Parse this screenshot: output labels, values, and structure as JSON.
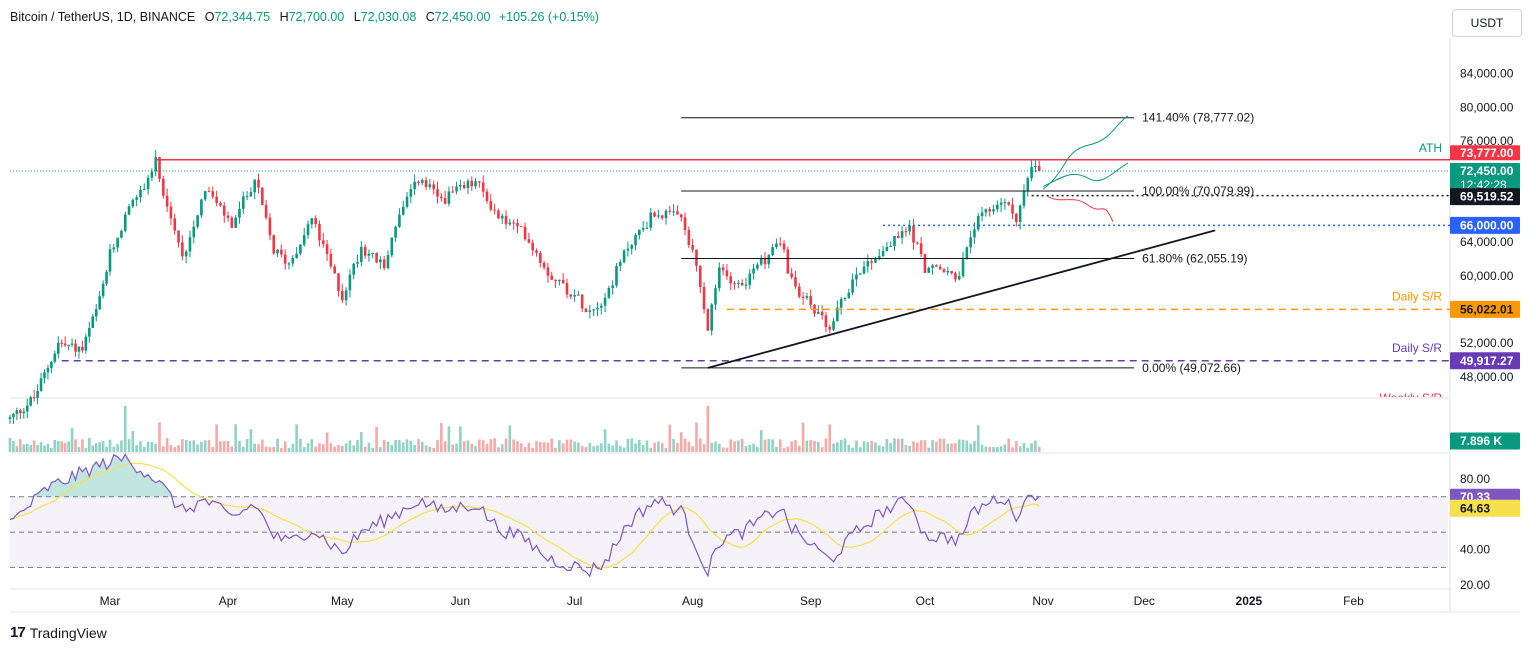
{
  "header": {
    "symbol": "Bitcoin / TetherUS, 1D, BINANCE",
    "o_label": "O",
    "o_value": "72,344.75",
    "h_label": "H",
    "h_value": "72,700.00",
    "l_label": "L",
    "l_value": "72,030.08",
    "c_label": "C",
    "c_value": "72,450.00",
    "change": "+105.26 (+0.15%)"
  },
  "currency_button": "USDT",
  "branding": "TradingView",
  "colors": {
    "up": "#089981",
    "down": "#f23645",
    "ath": "#f23645",
    "fib": "#131722",
    "daily_sr_orange": "#ff9800",
    "daily_sr_purple": "#673ab7",
    "level_blue": "#2962ff",
    "rsi": "#7e57c2",
    "rsi_ma": "#f7e14a",
    "weekly_sr": "#f23645",
    "projection_up": "#089981",
    "projection_down": "#f23645"
  },
  "chart_data": {
    "type": "candlestick",
    "title": "Bitcoin / TetherUS, 1D, BINANCE",
    "price_axis": {
      "range": [
        45500,
        88000
      ],
      "ticks": [
        "84,000.00",
        "80,000.00",
        "76,000.00",
        "64,000.00",
        "60,000.00",
        "52,000.00",
        "48,000.00"
      ]
    },
    "time_axis": {
      "labels": [
        "Mar",
        "Apr",
        "May",
        "Jun",
        "Jul",
        "Aug",
        "Sep",
        "Oct",
        "Nov",
        "Dec",
        "2025",
        "Feb"
      ]
    },
    "price_path": [
      [
        "2024-02-01",
        43000
      ],
      [
        "2024-02-08",
        45500
      ],
      [
        "2024-02-15",
        52000
      ],
      [
        "2024-02-22",
        51200
      ],
      [
        "2024-02-27",
        57000
      ],
      [
        "2024-03-01",
        62500
      ],
      [
        "2024-03-05",
        67000
      ],
      [
        "2024-03-08",
        69000
      ],
      [
        "2024-03-13",
        73500
      ],
      [
        "2024-03-16",
        68500
      ],
      [
        "2024-03-20",
        62000
      ],
      [
        "2024-03-26",
        70500
      ],
      [
        "2024-04-02",
        66000
      ],
      [
        "2024-04-08",
        71500
      ],
      [
        "2024-04-13",
        63000
      ],
      [
        "2024-04-17",
        61500
      ],
      [
        "2024-04-23",
        66800
      ],
      [
        "2024-05-01",
        57500
      ],
      [
        "2024-05-06",
        63500
      ],
      [
        "2024-05-12",
        61000
      ],
      [
        "2024-05-15",
        66200
      ],
      [
        "2024-05-21",
        71500
      ],
      [
        "2024-05-27",
        69000
      ],
      [
        "2024-06-05",
        71200
      ],
      [
        "2024-06-11",
        67000
      ],
      [
        "2024-06-18",
        65000
      ],
      [
        "2024-06-24",
        60500
      ],
      [
        "2024-07-05",
        56000
      ],
      [
        "2024-07-09",
        57500
      ],
      [
        "2024-07-15",
        63500
      ],
      [
        "2024-07-22",
        67500
      ],
      [
        "2024-07-29",
        66800
      ],
      [
        "2024-08-02",
        61000
      ],
      [
        "2024-08-05",
        53500
      ],
      [
        "2024-08-08",
        60800
      ],
      [
        "2024-08-14",
        58800
      ],
      [
        "2024-08-24",
        64200
      ],
      [
        "2024-08-27",
        59200
      ],
      [
        "2024-09-06",
        53800
      ],
      [
        "2024-09-13",
        60500
      ],
      [
        "2024-09-20",
        63000
      ],
      [
        "2024-09-27",
        65800
      ],
      [
        "2024-10-01",
        61000
      ],
      [
        "2024-10-10",
        60000
      ],
      [
        "2024-10-14",
        66000
      ],
      [
        "2024-10-21",
        69000
      ],
      [
        "2024-10-25",
        67000
      ],
      [
        "2024-10-29",
        72700
      ],
      [
        "2024-10-31",
        72450
      ]
    ],
    "annotations": {
      "ath": {
        "label": "ATH",
        "price": 73777.0,
        "price_label": "73,777.00"
      },
      "last_price": {
        "price": 72450.0,
        "price_label": "72,450.00",
        "countdown": "12:42:28"
      },
      "dotted_level": {
        "price": 69519.52,
        "price_label": "69,519.52"
      },
      "level_66000": {
        "price": 66000.0,
        "price_label": "66,000.00"
      },
      "daily_sr_1": {
        "label": "Daily S/R",
        "price": 56022.01,
        "price_label": "56,022.01"
      },
      "daily_sr_2": {
        "label": "Daily S/R",
        "price": 49917.27,
        "price_label": "49,917.27"
      },
      "weekly_sr": {
        "label": "Weekly S/R"
      },
      "fib_levels": [
        {
          "label": "141.40% (78,777.02)",
          "price": 78777.02
        },
        {
          "label": "100.00% (70,079.99)",
          "price": 70079.99
        },
        {
          "label": "61.80% (62,055.19)",
          "price": 62055.19
        },
        {
          "label": "0.00% (49,072.66)",
          "price": 49072.66
        }
      ],
      "trendline": {
        "from": [
          "2024-08-05",
          49072.66
        ],
        "to": [
          "2024-12-22",
          65400
        ]
      }
    },
    "volume": {
      "last_label": "7.896 K",
      "spike_dates": [
        "2024-03-05",
        "2024-08-05"
      ]
    },
    "rsi": {
      "range": [
        20,
        92
      ],
      "ticks": [
        "80.00",
        "40.00",
        "20.00"
      ],
      "bands": [
        70,
        50,
        30
      ],
      "rsi_value": 70.33,
      "rsi_label": "70.33",
      "ma_value": 64.63,
      "ma_label": "64.63",
      "path": [
        [
          "2024-02-01",
          55
        ],
        [
          "2024-02-12",
          75
        ],
        [
          "2024-02-20",
          82
        ],
        [
          "2024-02-27",
          88
        ],
        [
          "2024-03-05",
          92
        ],
        [
          "2024-03-13",
          80
        ],
        [
          "2024-03-20",
          62
        ],
        [
          "2024-03-26",
          68
        ],
        [
          "2024-04-02",
          58
        ],
        [
          "2024-04-08",
          66
        ],
        [
          "2024-04-13",
          48
        ],
        [
          "2024-04-17",
          44
        ],
        [
          "2024-04-23",
          52
        ],
        [
          "2024-05-01",
          38
        ],
        [
          "2024-05-06",
          50
        ],
        [
          "2024-05-15",
          60
        ],
        [
          "2024-05-21",
          68
        ],
        [
          "2024-05-27",
          62
        ],
        [
          "2024-06-05",
          66
        ],
        [
          "2024-06-11",
          52
        ],
        [
          "2024-06-18",
          46
        ],
        [
          "2024-06-24",
          35
        ],
        [
          "2024-07-05",
          28
        ],
        [
          "2024-07-09",
          33
        ],
        [
          "2024-07-15",
          55
        ],
        [
          "2024-07-22",
          68
        ],
        [
          "2024-07-29",
          62
        ],
        [
          "2024-08-02",
          42
        ],
        [
          "2024-08-05",
          27
        ],
        [
          "2024-08-08",
          45
        ],
        [
          "2024-08-14",
          50
        ],
        [
          "2024-08-24",
          64
        ],
        [
          "2024-08-27",
          52
        ],
        [
          "2024-09-06",
          34
        ],
        [
          "2024-09-13",
          50
        ],
        [
          "2024-09-20",
          62
        ],
        [
          "2024-09-27",
          68
        ],
        [
          "2024-10-01",
          48
        ],
        [
          "2024-10-10",
          46
        ],
        [
          "2024-10-14",
          62
        ],
        [
          "2024-10-21",
          70
        ],
        [
          "2024-10-25",
          60
        ],
        [
          "2024-10-29",
          72
        ],
        [
          "2024-10-31",
          70.33
        ]
      ]
    }
  }
}
